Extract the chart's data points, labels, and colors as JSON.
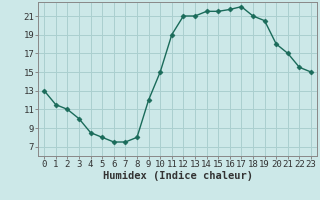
{
  "x": [
    0,
    1,
    2,
    3,
    4,
    5,
    6,
    7,
    8,
    9,
    10,
    11,
    12,
    13,
    14,
    15,
    16,
    17,
    18,
    19,
    20,
    21,
    22,
    23
  ],
  "y": [
    13.0,
    11.5,
    11.0,
    10.0,
    8.5,
    8.0,
    7.5,
    7.5,
    8.0,
    12.0,
    15.0,
    19.0,
    21.0,
    21.0,
    21.5,
    21.5,
    21.7,
    22.0,
    21.0,
    20.5,
    18.0,
    17.0,
    15.5,
    15.0
  ],
  "line_color": "#1a6b5a",
  "marker": "D",
  "marker_size": 2.5,
  "bg_color": "#cce8e8",
  "grid_color": "#aacfcf",
  "xlabel": "Humidex (Indice chaleur)",
  "yticks": [
    7,
    9,
    11,
    13,
    15,
    17,
    19,
    21
  ],
  "xticks": [
    0,
    1,
    2,
    3,
    4,
    5,
    6,
    7,
    8,
    9,
    10,
    11,
    12,
    13,
    14,
    15,
    16,
    17,
    18,
    19,
    20,
    21,
    22,
    23
  ],
  "xlim": [
    -0.5,
    23.5
  ],
  "ylim": [
    6.0,
    22.5
  ],
  "label_fontsize": 7.5,
  "tick_fontsize": 6.5
}
